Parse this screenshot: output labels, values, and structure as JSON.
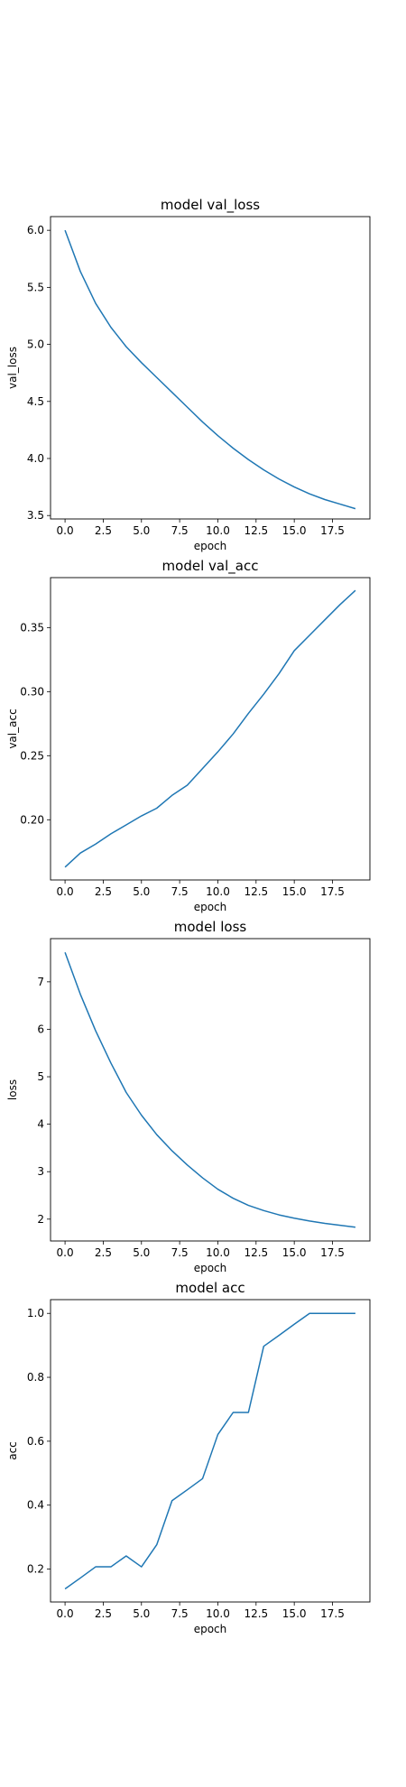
{
  "figure": {
    "line_color": "#1f77b4"
  },
  "chart_data": [
    {
      "type": "line",
      "title": "model val_loss",
      "xlabel": "epoch",
      "ylabel": "val_loss",
      "xlim": [
        -0.95,
        19.95
      ],
      "ylim": [
        3.47,
        6.12
      ],
      "xticks": [
        0,
        2.5,
        5,
        7.5,
        10,
        12.5,
        15,
        17.5
      ],
      "xtick_labels": [
        "0.0",
        "2.5",
        "5.0",
        "7.5",
        "10.0",
        "12.5",
        "15.0",
        "17.5"
      ],
      "yticks": [
        3.5,
        4.0,
        4.5,
        5.0,
        5.5,
        6.0
      ],
      "ytick_labels": [
        "3.5",
        "4.0",
        "4.5",
        "5.0",
        "5.5",
        "6.0"
      ],
      "grid": false,
      "series": [
        {
          "x": [
            0,
            1,
            2,
            3,
            4,
            5,
            6,
            7,
            8,
            9,
            10,
            11,
            12,
            13,
            14,
            15,
            16,
            17,
            18,
            19
          ],
          "y": [
            6.0,
            5.64,
            5.36,
            5.15,
            4.98,
            4.84,
            4.71,
            4.58,
            4.45,
            4.32,
            4.2,
            4.09,
            3.99,
            3.9,
            3.82,
            3.75,
            3.69,
            3.64,
            3.6,
            3.56
          ]
        }
      ]
    },
    {
      "type": "line",
      "title": "model val_acc",
      "xlabel": "epoch",
      "ylabel": "val_acc",
      "xlim": [
        -0.95,
        19.95
      ],
      "ylim": [
        0.153,
        0.389
      ],
      "xticks": [
        0,
        2.5,
        5,
        7.5,
        10,
        12.5,
        15,
        17.5
      ],
      "xtick_labels": [
        "0.0",
        "2.5",
        "5.0",
        "7.5",
        "10.0",
        "12.5",
        "15.0",
        "17.5"
      ],
      "yticks": [
        0.2,
        0.25,
        0.3,
        0.35
      ],
      "ytick_labels": [
        "0.20",
        "0.25",
        "0.30",
        "0.35"
      ],
      "grid": false,
      "series": [
        {
          "x": [
            0,
            1,
            2,
            3,
            4,
            5,
            6,
            7,
            8,
            9,
            10,
            11,
            12,
            13,
            14,
            15,
            16,
            17,
            18,
            19
          ],
          "y": [
            0.163,
            0.174,
            0.181,
            0.189,
            0.196,
            0.203,
            0.209,
            0.219,
            0.227,
            0.24,
            0.253,
            0.267,
            0.283,
            0.298,
            0.314,
            0.332,
            0.344,
            0.356,
            0.368,
            0.379
          ]
        }
      ]
    },
    {
      "type": "line",
      "title": "model loss",
      "xlabel": "epoch",
      "ylabel": "loss",
      "xlim": [
        -0.95,
        19.95
      ],
      "ylim": [
        1.54,
        7.91
      ],
      "xticks": [
        0,
        2.5,
        5,
        7.5,
        10,
        12.5,
        15,
        17.5
      ],
      "xtick_labels": [
        "0.0",
        "2.5",
        "5.0",
        "7.5",
        "10.0",
        "12.5",
        "15.0",
        "17.5"
      ],
      "yticks": [
        2,
        3,
        4,
        5,
        6,
        7
      ],
      "ytick_labels": [
        "2",
        "3",
        "4",
        "5",
        "6",
        "7"
      ],
      "grid": false,
      "series": [
        {
          "x": [
            0,
            1,
            2,
            3,
            4,
            5,
            6,
            7,
            8,
            9,
            10,
            11,
            12,
            13,
            14,
            15,
            16,
            17,
            18,
            19
          ],
          "y": [
            7.62,
            6.74,
            5.97,
            5.29,
            4.67,
            4.19,
            3.78,
            3.44,
            3.14,
            2.87,
            2.63,
            2.44,
            2.29,
            2.18,
            2.09,
            2.02,
            1.96,
            1.91,
            1.87,
            1.83
          ]
        }
      ]
    },
    {
      "type": "line",
      "title": "model acc",
      "xlabel": "epoch",
      "ylabel": "acc",
      "xlim": [
        -0.95,
        19.95
      ],
      "ylim": [
        0.097,
        1.043
      ],
      "xticks": [
        0,
        2.5,
        5,
        7.5,
        10,
        12.5,
        15,
        17.5
      ],
      "xtick_labels": [
        "0.0",
        "2.5",
        "5.0",
        "7.5",
        "10.0",
        "12.5",
        "15.0",
        "17.5"
      ],
      "yticks": [
        0.2,
        0.4,
        0.6,
        0.8,
        1.0
      ],
      "ytick_labels": [
        "0.2",
        "0.4",
        "0.6",
        "0.8",
        "1.0"
      ],
      "grid": false,
      "series": [
        {
          "x": [
            0,
            1,
            2,
            3,
            4,
            5,
            6,
            7,
            8,
            9,
            10,
            11,
            12,
            13,
            14,
            15,
            16,
            17,
            18,
            19
          ],
          "y": [
            0.138,
            0.172,
            0.207,
            0.207,
            0.241,
            0.207,
            0.276,
            0.414,
            0.448,
            0.483,
            0.621,
            0.69,
            0.69,
            0.897,
            0.931,
            0.966,
            1.0,
            1.0,
            1.0,
            1.0
          ]
        }
      ]
    }
  ]
}
